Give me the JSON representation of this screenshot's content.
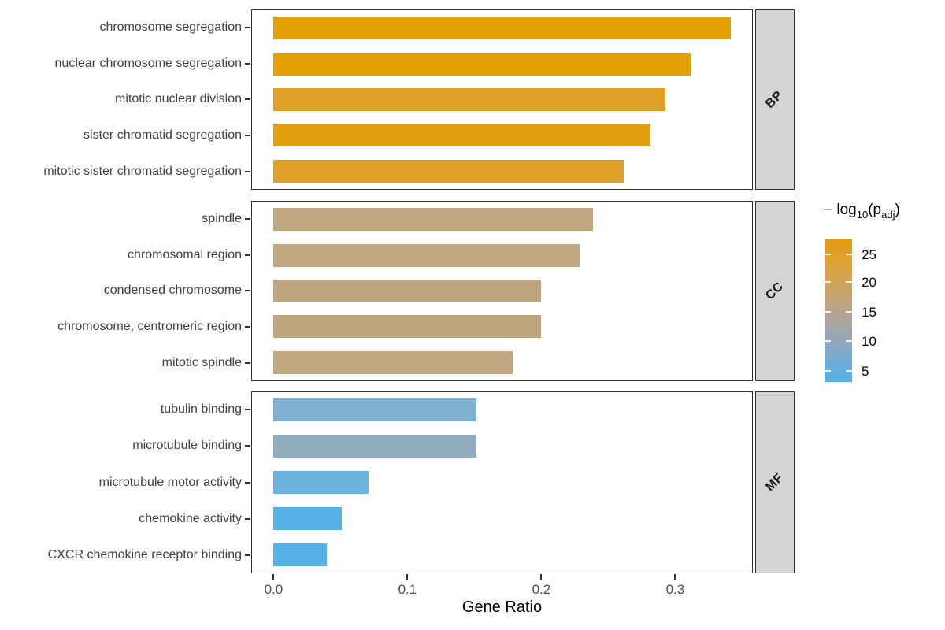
{
  "chart_data": {
    "type": "bar",
    "orientation": "horizontal",
    "xlabel": "Gene Ratio",
    "x_ticks": [
      "0.0",
      "0.1",
      "0.2",
      "0.3"
    ],
    "x_tick_values": [
      0.0,
      0.1,
      0.2,
      0.3
    ],
    "xlim": [
      -0.017,
      0.375
    ],
    "grid": "off",
    "facets": [
      {
        "strip_label": "BP",
        "categories": [
          "chromosome segregation",
          "nuclear chromosome segregation",
          "mitotic nuclear division",
          "sister chromatid segregation",
          "mitotic sister chromatid segregation"
        ],
        "values": [
          0.342,
          0.312,
          0.293,
          0.282,
          0.262
        ],
        "bar_colors": [
          "#E4A004",
          "#E4A004",
          "#DFA125",
          "#E2A011",
          "#DFA125"
        ]
      },
      {
        "strip_label": "CC",
        "categories": [
          "spindle",
          "chromosomal region",
          "condensed chromosome",
          "chromosome, centromeric region",
          "mitotic spindle"
        ],
        "values": [
          0.239,
          0.229,
          0.2,
          0.2,
          0.179
        ],
        "bar_colors": [
          "#BFA882",
          "#BFA882",
          "#BEA77E",
          "#BEA77E",
          "#BFA882"
        ]
      },
      {
        "strip_label": "MF",
        "categories": [
          "tubulin binding",
          "microtubule binding",
          "microtubule motor activity",
          "chemokine activity",
          "CXCR chemokine receptor binding"
        ],
        "values": [
          0.152,
          0.152,
          0.071,
          0.051,
          0.04
        ],
        "bar_colors": [
          "#7FB0D2",
          "#90ADBF",
          "#6BB2DF",
          "#55B1E7",
          "#55B1E7"
        ]
      }
    ],
    "legend": {
      "title_prefix": "− log",
      "title_sub1": "10",
      "title_mid": "(p",
      "title_sub2": "adj",
      "title_suffix": ")",
      "tick_labels": [
        "25",
        "20",
        "15",
        "10",
        "5"
      ],
      "gradient_top_color": "#E39A0B",
      "gradient_mid_color": "#B4A48F",
      "gradient_bottom_color": "#56B1E8"
    },
    "colors": {
      "strip_background": "#d4d4d4",
      "panel_border": "#333333",
      "axis_text": "#4d4d4d"
    }
  }
}
